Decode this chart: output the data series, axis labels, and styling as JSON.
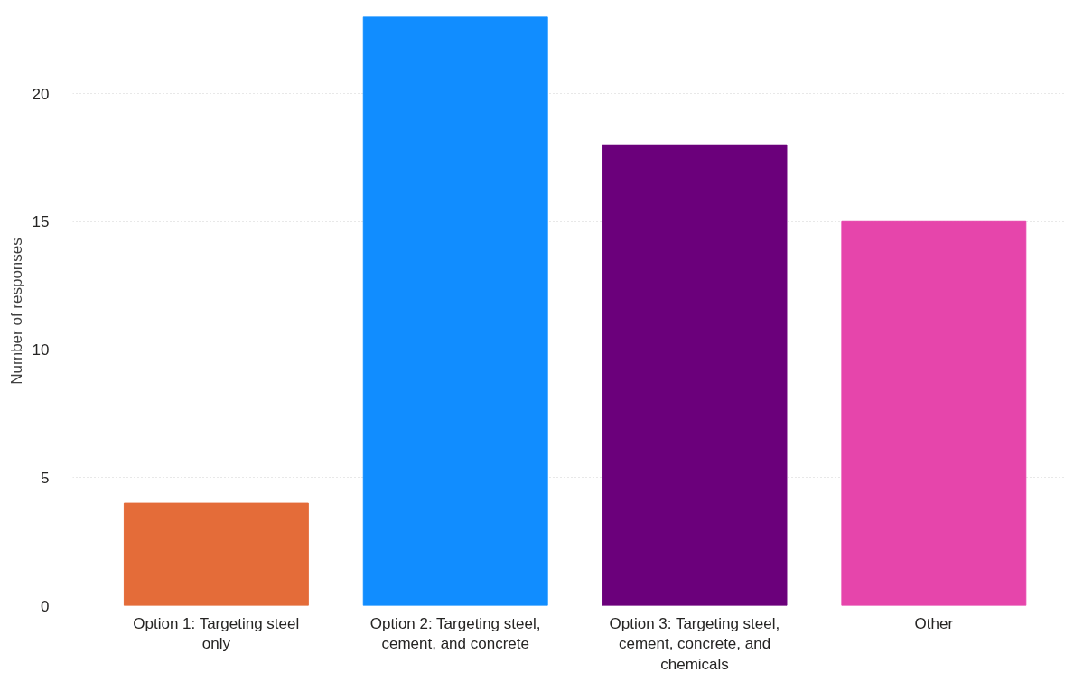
{
  "chart_data": {
    "type": "bar",
    "ylabel": "Number of responses",
    "categories": [
      "Option 1: Targeting steel only",
      "Option 2: Targeting steel, cement, and concrete",
      "Option 3: Targeting steel, cement, concrete, and chemicals",
      "Other"
    ],
    "values": [
      4,
      23,
      18,
      15
    ],
    "colors": [
      "#e46c39",
      "#118dff",
      "#6b007b",
      "#e645ab"
    ],
    "ylim": [
      0,
      23
    ],
    "yticks": [
      0,
      5,
      10,
      15,
      20
    ],
    "grid": "y"
  }
}
